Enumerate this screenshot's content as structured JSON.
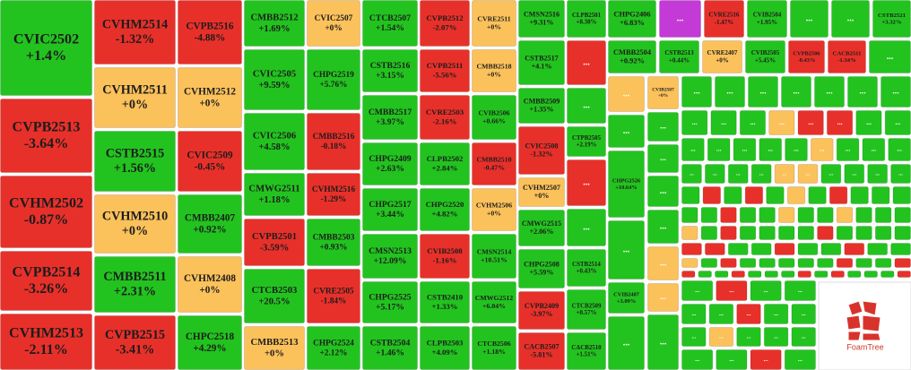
{
  "tiles": [
    {
      "name": "CVIC2502",
      "change": "+1.4%",
      "color": "#22c31f"
    },
    {
      "name": "CVPB2513",
      "change": "-3.64%",
      "color": "#e8302a"
    },
    {
      "name": "CVHM2502",
      "change": "-0.87%",
      "color": "#e8302a"
    },
    {
      "name": "CVPB2514",
      "change": "-3.26%",
      "color": "#e8302a"
    },
    {
      "name": "CVHM2513",
      "change": "-2.11%",
      "color": "#e8302a"
    },
    {
      "name": "CVHM2514",
      "change": "-1.32%",
      "color": "#e8302a"
    },
    {
      "name": "CVHM2511",
      "change": "+0%",
      "color": "#fbc15b"
    },
    {
      "name": "CSTB2515",
      "change": "+1.56%",
      "color": "#22c31f"
    },
    {
      "name": "CVHM2510",
      "change": "+0%",
      "color": "#fbc15b"
    },
    {
      "name": "CMBB2511",
      "change": "+2.31%",
      "color": "#22c31f"
    },
    {
      "name": "CVPB2515",
      "change": "-3.41%",
      "color": "#e8302a"
    },
    {
      "name": "CVPB2516",
      "change": "-4.88%",
      "color": "#e8302a"
    },
    {
      "name": "CVHM2512",
      "change": "+0%",
      "color": "#fbc15b"
    },
    {
      "name": "CVIC2509",
      "change": "-0.45%",
      "color": "#e8302a"
    },
    {
      "name": "CMBB2407",
      "change": "+0.92%",
      "color": "#22c31f"
    },
    {
      "name": "CVHM2408",
      "change": "+0%",
      "color": "#fbc15b"
    },
    {
      "name": "CHPC2518",
      "change": "+4.29%",
      "color": "#22c31f"
    },
    {
      "name": "CMBB2512",
      "change": "+1.69%",
      "color": "#22c31f"
    },
    {
      "name": "CVIC2505",
      "change": "+9.59%",
      "color": "#22c31f"
    },
    {
      "name": "CVIC2506",
      "change": "+4.58%",
      "color": "#22c31f"
    },
    {
      "name": "CMWG2511",
      "change": "+1.18%",
      "color": "#22c31f"
    },
    {
      "name": "CVPB2501",
      "change": "-3.59%",
      "color": "#e8302a"
    },
    {
      "name": "CTCB2503",
      "change": "+20.5%",
      "color": "#22c31f"
    },
    {
      "name": "CMBB2513",
      "change": "+0%",
      "color": "#fbc15b"
    },
    {
      "name": "CVIC2507",
      "change": "+0%",
      "color": "#fbc15b"
    },
    {
      "name": "CHPG2519",
      "change": "+5.76%",
      "color": "#22c31f"
    },
    {
      "name": "CMBB2516",
      "change": "-0.18%",
      "color": "#e8302a"
    },
    {
      "name": "CVHM2516",
      "change": "-1.29%",
      "color": "#e8302a"
    },
    {
      "name": "CMBB2503",
      "change": "+0.93%",
      "color": "#22c31f"
    },
    {
      "name": "CVRE2505",
      "change": "-1.84%",
      "color": "#e8302a"
    },
    {
      "name": "CHPG2524",
      "change": "+2.12%",
      "color": "#22c31f"
    },
    {
      "name": "CTCB2507",
      "change": "+1.54%",
      "color": "#22c31f"
    },
    {
      "name": "CSTB2516",
      "change": "+3.15%",
      "color": "#22c31f"
    },
    {
      "name": "CMBB2517",
      "change": "+3.97%",
      "color": "#22c31f"
    },
    {
      "name": "CHPG2409",
      "change": "+2.63%",
      "color": "#22c31f"
    },
    {
      "name": "CHPG2517",
      "change": "+3.44%",
      "color": "#22c31f"
    },
    {
      "name": "CMSN2513",
      "change": "+12.09%",
      "color": "#22c31f"
    },
    {
      "name": "CHPG2525",
      "change": "+5.17%",
      "color": "#22c31f"
    },
    {
      "name": "CSTB2504",
      "change": "+1.46%",
      "color": "#22c31f"
    },
    {
      "name": "CVPB2512",
      "change": "-2.07%",
      "color": "#e8302a"
    },
    {
      "name": "CVPB2511",
      "change": "-5.56%",
      "color": "#e8302a"
    },
    {
      "name": "CVRE2503",
      "change": "-2.16%",
      "color": "#e8302a"
    },
    {
      "name": "CLPB2502",
      "change": "+2.84%",
      "color": "#22c31f"
    },
    {
      "name": "CHPG2520",
      "change": "+4.82%",
      "color": "#22c31f"
    },
    {
      "name": "CVIB2508",
      "change": "-1.16%",
      "color": "#e8302a"
    },
    {
      "name": "CSTB2410",
      "change": "+1.33%",
      "color": "#22c31f"
    },
    {
      "name": "CLPB2503",
      "change": "+4.09%",
      "color": "#22c31f"
    },
    {
      "name": "CVRE2511",
      "change": "+0%",
      "color": "#fbc15b"
    },
    {
      "name": "CMBB2518",
      "change": "+0%",
      "color": "#fbc15b"
    },
    {
      "name": "CVIB2506",
      "change": "+0.66%",
      "color": "#22c31f"
    },
    {
      "name": "CMBB2510",
      "change": "-0.47%",
      "color": "#e8302a"
    },
    {
      "name": "CVHM2506",
      "change": "+0%",
      "color": "#fbc15b"
    },
    {
      "name": "CMSN2514",
      "change": "+10.51%",
      "color": "#22c31f"
    },
    {
      "name": "CMWG2512",
      "change": "+6.04%",
      "color": "#22c31f"
    },
    {
      "name": "CTCB2506",
      "change": "+1.18%",
      "color": "#22c31f"
    },
    {
      "name": "CMSN2516",
      "change": "+9.31%",
      "color": "#22c31f"
    },
    {
      "name": "CSTB2517",
      "change": "+4.1%",
      "color": "#22c31f"
    },
    {
      "name": "CMBB2509",
      "change": "+1.35%",
      "color": "#22c31f"
    },
    {
      "name": "CVIC2508",
      "change": "-1.32%",
      "color": "#e8302a"
    },
    {
      "name": "CVHM2507",
      "change": "+0%",
      "color": "#fbc15b"
    },
    {
      "name": "CMWG2515",
      "change": "+2.06%",
      "color": "#22c31f"
    },
    {
      "name": "CHPG2508",
      "change": "+5.59%",
      "color": "#22c31f"
    },
    {
      "name": "CVPB2409",
      "change": "-3.97%",
      "color": "#e8302a"
    },
    {
      "name": "CACB2507",
      "change": "-5.81%",
      "color": "#e8302a"
    },
    {
      "name": "CLPB2501",
      "change": "+8.38%",
      "color": "#22c31f"
    },
    {
      "label": "...",
      "color": "#e8302a"
    },
    {
      "label": "...",
      "color": "#22c31f"
    },
    {
      "name": "CTPB2505",
      "change": "+2.19%",
      "color": "#22c31f"
    },
    {
      "label": "...",
      "color": "#e8302a"
    },
    {
      "label": "...",
      "color": "#22c31f"
    },
    {
      "name": "CSTB2514",
      "change": "+0.43%",
      "color": "#22c31f"
    },
    {
      "name": "CTCB2509",
      "change": "+0.57%",
      "color": "#22c31f"
    },
    {
      "name": "CACB2510",
      "change": "+1.51%",
      "color": "#22c31f"
    },
    {
      "name": "CHPG2406",
      "change": "+6.83%",
      "color": "#22c31f"
    },
    {
      "label": "...",
      "color": "#c43ad6"
    },
    {
      "name": "CVRE2516",
      "change": "-1.47%",
      "color": "#e8302a"
    },
    {
      "name": "CVIB2504",
      "change": "+1.95%",
      "color": "#22c31f"
    },
    {
      "label": "...",
      "color": "#22c31f"
    },
    {
      "label": "...",
      "color": "#22c31f"
    },
    {
      "name": "CSTB2521",
      "change": "+3.32%",
      "color": "#22c31f"
    },
    {
      "name": "CMBB2504",
      "change": "+0.92%",
      "color": "#22c31f"
    },
    {
      "name": "CSTB2513",
      "change": "+0.44%",
      "color": "#22c31f"
    },
    {
      "name": "CVRE2407",
      "change": "+0%",
      "color": "#fbc15b"
    },
    {
      "name": "CVIB2505",
      "change": "+5.45%",
      "color": "#22c31f"
    },
    {
      "name": "CVPB2506",
      "change": "-0.43%",
      "color": "#e8302a"
    },
    {
      "name": "CACB2511",
      "change": "-1.34%",
      "color": "#e8302a"
    },
    {
      "label": "...",
      "color": "#22c31f"
    },
    {
      "label": "...",
      "color": "#fbc15b"
    },
    {
      "label": "...",
      "color": "#22c31f"
    },
    {
      "name": "CHPG2526",
      "change": "+10.64%",
      "color": "#22c31f"
    },
    {
      "label": "...",
      "color": "#22c31f"
    },
    {
      "name": "CVIB2407",
      "change": "+3.09%",
      "color": "#22c31f"
    },
    {
      "label": "...",
      "color": "#22c31f"
    },
    {
      "name": "CVIB2507",
      "change": "+0%",
      "color": "#fbc15b"
    },
    {
      "label": "...",
      "color": "#22c31f"
    },
    {
      "label": "...",
      "color": "#22c31f"
    },
    {
      "label": "...",
      "color": "#22c31f"
    },
    {
      "label": "...",
      "color": "#22c31f"
    },
    {
      "label": "...",
      "color": "#fbc15b"
    },
    {
      "label": "...",
      "color": "#fbc15b"
    },
    {
      "label": "...",
      "color": "#22c31f"
    }
  ],
  "small_tiles": [
    {
      "label": "...",
      "color": "#22c31f"
    },
    {
      "label": "...",
      "color": "#22c31f"
    },
    {
      "label": "...",
      "color": "#22c31f"
    },
    {
      "label": "...",
      "color": "#22c31f"
    },
    {
      "label": "...",
      "color": "#22c31f"
    },
    {
      "label": "...",
      "color": "#22c31f"
    },
    {
      "label": "...",
      "color": "#22c31f"
    },
    {
      "label": "...",
      "color": "#22c31f"
    },
    {
      "label": "...",
      "color": "#22c31f"
    },
    {
      "label": "...",
      "color": "#22c31f"
    },
    {
      "label": "...",
      "color": "#fbc15b"
    },
    {
      "label": "...",
      "color": "#e8302a"
    },
    {
      "label": "...",
      "color": "#e8302a"
    },
    {
      "label": "...",
      "color": "#22c31f"
    },
    {
      "label": "...",
      "color": "#22c31f"
    },
    {
      "label": "...",
      "color": "#22c31f"
    },
    {
      "label": "...",
      "color": "#22c31f"
    },
    {
      "label": "...",
      "color": "#22c31f"
    },
    {
      "label": "...",
      "color": "#22c31f"
    },
    {
      "label": "...",
      "color": "#22c31f"
    },
    {
      "label": "...",
      "color": "#fbc15b"
    },
    {
      "label": "...",
      "color": "#22c31f"
    },
    {
      "label": "...",
      "color": "#22c31f"
    },
    {
      "label": "...",
      "color": "#22c31f"
    },
    {
      "label": "...",
      "color": "#22c31f"
    },
    {
      "label": "...",
      "color": "#22c31f"
    },
    {
      "label": "...",
      "color": "#22c31f"
    },
    {
      "label": "...",
      "color": "#22c31f"
    },
    {
      "label": "...",
      "color": "#fbc15b"
    },
    {
      "label": "...",
      "color": "#fbc15b"
    },
    {
      "label": "...",
      "color": "#22c31f"
    },
    {
      "label": "...",
      "color": "#22c31f"
    },
    {
      "label": "...",
      "color": "#22c31f"
    },
    {
      "label": "...",
      "color": "#22c31f"
    },
    {
      "color": "#22c31f"
    },
    {
      "color": "#e8302a"
    },
    {
      "color": "#22c31f"
    },
    {
      "color": "#e8302a"
    },
    {
      "color": "#22c31f"
    },
    {
      "color": "#fbc15b"
    },
    {
      "color": "#22c31f"
    },
    {
      "color": "#e8302a"
    },
    {
      "color": "#22c31f"
    },
    {
      "color": "#22c31f"
    },
    {
      "color": "#22c31f"
    },
    {
      "color": "#22c31f"
    },
    {
      "color": "#22c31f"
    },
    {
      "color": "#e8302a"
    },
    {
      "color": "#22c31f"
    },
    {
      "color": "#22c31f"
    },
    {
      "color": "#fbc15b"
    },
    {
      "color": "#22c31f"
    },
    {
      "color": "#22c31f"
    },
    {
      "color": "#fbc15b"
    },
    {
      "color": "#22c31f"
    },
    {
      "color": "#22c31f"
    },
    {
      "color": "#22c31f"
    },
    {
      "color": "#fbc15b"
    },
    {
      "color": "#22c31f"
    },
    {
      "color": "#e8302a"
    },
    {
      "color": "#22c31f"
    },
    {
      "color": "#22c31f"
    },
    {
      "color": "#22c31f"
    },
    {
      "color": "#22c31f"
    },
    {
      "color": "#e8302a"
    },
    {
      "color": "#22c31f"
    },
    {
      "color": "#22c31f"
    },
    {
      "color": "#22c31f"
    },
    {
      "color": "#22c31f"
    },
    {
      "color": "#e8302a"
    },
    {
      "color": "#e8302a"
    },
    {
      "color": "#22c31f"
    },
    {
      "color": "#22c31f"
    },
    {
      "color": "#e8302a"
    },
    {
      "color": "#22c31f"
    },
    {
      "color": "#22c31f"
    },
    {
      "color": "#e8302a"
    },
    {
      "color": "#22c31f"
    },
    {
      "color": "#22c31f"
    },
    {
      "color": "#fbc15b"
    },
    {
      "color": "#22c31f"
    },
    {
      "color": "#e8302a"
    },
    {
      "color": "#22c31f"
    },
    {
      "color": "#22c31f"
    },
    {
      "color": "#22c31f"
    },
    {
      "color": "#22c31f"
    },
    {
      "color": "#22c31f"
    },
    {
      "color": "#e8302a"
    },
    {
      "color": "#22c31f"
    },
    {
      "color": "#22c31f"
    },
    {
      "color": "#e8302a"
    },
    {
      "color": "#e8302a"
    },
    {
      "color": "#22c31f"
    },
    {
      "color": "#22c31f"
    },
    {
      "color": "#e8302a"
    },
    {
      "color": "#22c31f"
    },
    {
      "color": "#22c31f"
    },
    {
      "color": "#22c31f"
    },
    {
      "color": "#e8302a"
    },
    {
      "color": "#22c31f"
    },
    {
      "color": "#e8302a"
    },
    {
      "color": "#22c31f"
    },
    {
      "color": "#22c31f"
    },
    {
      "color": "#22c31f"
    },
    {
      "color": "#e8302a"
    },
    {
      "label": "...",
      "color": "#22c31f"
    },
    {
      "label": "...",
      "color": "#e8302a"
    },
    {
      "label": "...",
      "color": "#22c31f"
    },
    {
      "label": "...",
      "color": "#22c31f"
    },
    {
      "label": "...",
      "color": "#22c31f"
    },
    {
      "label": "...",
      "color": "#22c31f"
    },
    {
      "label": "...",
      "color": "#e8302a"
    },
    {
      "label": "...",
      "color": "#22c31f"
    },
    {
      "label": "...",
      "color": "#22c31f"
    },
    {
      "label": "...",
      "color": "#22c31f"
    },
    {
      "label": "...",
      "color": "#fbc15b"
    },
    {
      "label": "...",
      "color": "#22c31f"
    },
    {
      "label": "...",
      "color": "#22c31f"
    },
    {
      "label": "...",
      "color": "#22c31f"
    },
    {
      "label": "...",
      "color": "#22c31f"
    },
    {
      "label": "...",
      "color": "#22c31f"
    },
    {
      "label": "...",
      "color": "#e8302a"
    },
    {
      "label": "...",
      "color": "#22c31f"
    }
  ],
  "branding": {
    "label": "FoamTree"
  }
}
